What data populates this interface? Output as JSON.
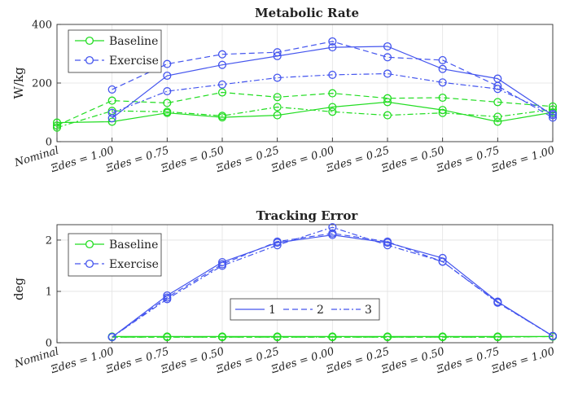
{
  "chart_data": [
    {
      "type": "line",
      "title": "Metabolic Rate",
      "ylabel": "W/kg",
      "xlabel": "",
      "ylim": [
        0,
        400
      ],
      "yticks": [
        "0",
        "200",
        "400"
      ],
      "categories": [
        "Nominal",
        "Ξdes = 1.00",
        "Ξdes = 0.75",
        "Ξdes = 0.50",
        "Ξdes = 0.25",
        "Ξdes = 0.00",
        "Ξdes = 0.25",
        "Ξdes = 0.50",
        "Ξdes = 0.75",
        "Ξdes = 1.00"
      ],
      "grid": true,
      "legend": {
        "position": "top-left",
        "entries": [
          "Baseline",
          "Exercise"
        ]
      },
      "series": [
        {
          "name": "Baseline",
          "group": "Baseline",
          "style": "solid",
          "color": "#22dd22",
          "values": [
            65,
            68,
            98,
            83,
            90,
            118,
            135,
            108,
            68,
            100
          ]
        },
        {
          "name": "Baseline",
          "group": "Baseline",
          "style": "dashed",
          "color": "#22dd22",
          "values": [
            55,
            140,
            132,
            168,
            152,
            165,
            148,
            150,
            135,
            120
          ]
        },
        {
          "name": "Baseline",
          "group": "Baseline",
          "style": "dashdot",
          "color": "#22dd22",
          "values": [
            48,
            105,
            102,
            88,
            118,
            102,
            90,
            98,
            85,
            110
          ]
        },
        {
          "name": "Exercise",
          "group": "Exercise",
          "style": "solid",
          "color": "#4455ee",
          "values": [
            null,
            80,
            225,
            262,
            292,
            322,
            325,
            248,
            215,
            90
          ]
        },
        {
          "name": "Exercise",
          "group": "Exercise",
          "style": "dashed",
          "color": "#4455ee",
          "values": [
            null,
            178,
            265,
            298,
            305,
            342,
            288,
            278,
            190,
            82
          ]
        },
        {
          "name": "Exercise",
          "group": "Exercise",
          "style": "dashdot",
          "color": "#4455ee",
          "values": [
            null,
            98,
            172,
            195,
            218,
            228,
            232,
            202,
            180,
            95
          ]
        }
      ]
    },
    {
      "type": "line",
      "title": "Tracking Error",
      "ylabel": "deg",
      "xlabel": "",
      "ylim": [
        0,
        2.3
      ],
      "yticks": [
        "0",
        "1",
        "2"
      ],
      "categories": [
        "Nominal",
        "Ξdes = 1.00",
        "Ξdes = 0.75",
        "Ξdes = 0.50",
        "Ξdes = 0.25",
        "Ξdes = 0.00",
        "Ξdes = 0.25",
        "Ξdes = 0.50",
        "Ξdes = 0.75",
        "Ξdes = 1.00"
      ],
      "grid": true,
      "legend": {
        "position": "top-left",
        "entries": [
          "Baseline",
          "Exercise"
        ]
      },
      "style_legend": {
        "position": "bottom-center",
        "entries": [
          "1",
          "2",
          "3"
        ]
      },
      "series": [
        {
          "name": "Baseline",
          "group": "Baseline",
          "style": "solid",
          "color": "#22dd22",
          "values": [
            null,
            0.12,
            0.12,
            0.12,
            0.12,
            0.12,
            0.12,
            0.12,
            0.12,
            0.12
          ]
        },
        {
          "name": "Baseline",
          "group": "Baseline",
          "style": "dashed",
          "color": "#22dd22",
          "values": [
            null,
            0.11,
            0.11,
            0.11,
            0.11,
            0.11,
            0.11,
            0.11,
            0.11,
            0.12
          ]
        },
        {
          "name": "Baseline",
          "group": "Baseline",
          "style": "dashdot",
          "color": "#22dd22",
          "values": [
            null,
            0.11,
            0.11,
            0.11,
            0.11,
            0.11,
            0.11,
            0.11,
            0.11,
            0.12
          ]
        },
        {
          "name": "Exercise",
          "group": "Exercise",
          "style": "solid",
          "color": "#4455ee",
          "values": [
            null,
            0.11,
            0.92,
            1.57,
            1.95,
            2.1,
            1.95,
            1.65,
            0.8,
            0.13
          ]
        },
        {
          "name": "Exercise",
          "group": "Exercise",
          "style": "dashed",
          "color": "#4455ee",
          "values": [
            null,
            0.11,
            0.88,
            1.53,
            1.97,
            2.13,
            1.97,
            1.58,
            0.79,
            0.13
          ]
        },
        {
          "name": "Exercise",
          "group": "Exercise",
          "style": "dashdot",
          "color": "#4455ee",
          "values": [
            null,
            0.11,
            0.85,
            1.5,
            1.9,
            2.25,
            1.9,
            1.58,
            0.78,
            0.13
          ]
        }
      ]
    }
  ]
}
